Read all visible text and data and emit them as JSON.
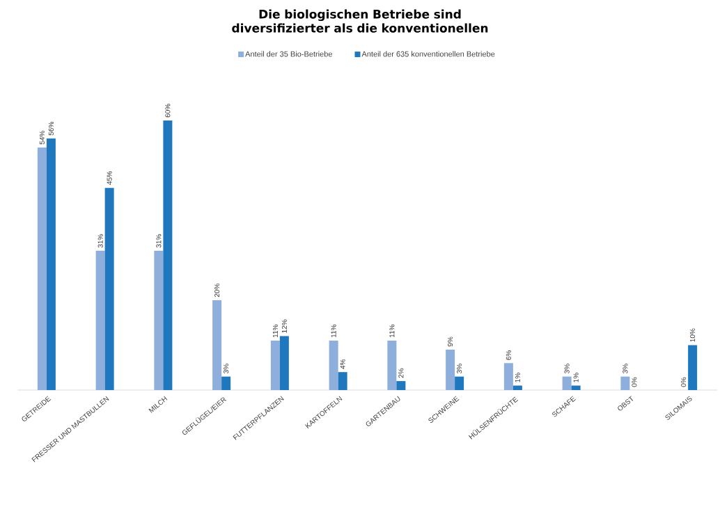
{
  "chart_data": {
    "type": "bar",
    "title": "Die biologischen Betriebe sind diversifizierter als die konventionellen",
    "legend": "top",
    "categories": [
      "GETREIDE",
      "FRESSER UND MASTBULLEN",
      "MILCH",
      "GEFLÜGEL/EIER",
      "FUTTERPFLANZEN",
      "KARTOFFELN",
      "GARTENBAU",
      "SCHWEINE",
      "HÜLSENFRÜCHTE",
      "SCHAFE",
      "OBST",
      "SILOMAIS"
    ],
    "series": [
      {
        "name": "Anteil der 35 Bio-Betriebe",
        "color": "#8eaedb",
        "values": [
          54,
          31,
          31,
          20,
          11,
          11,
          11,
          9,
          6,
          3,
          3,
          0
        ],
        "value_labels": [
          "54%",
          "31%",
          "31%",
          "20%",
          "11%",
          "11%",
          "11%",
          "9%",
          "6%",
          "3%",
          "3%",
          "0%"
        ]
      },
      {
        "name": "Anteil der 635 konventionellen Betriebe",
        "color": "#1f78bd",
        "values": [
          56,
          45,
          60,
          3,
          12,
          4,
          2,
          3,
          1,
          1,
          0,
          10
        ],
        "value_labels": [
          "56%",
          "45%",
          "60%",
          "3%",
          "12%",
          "4%",
          "2%",
          "3%",
          "1%",
          "1%",
          "0%",
          "10%"
        ]
      }
    ]
  }
}
